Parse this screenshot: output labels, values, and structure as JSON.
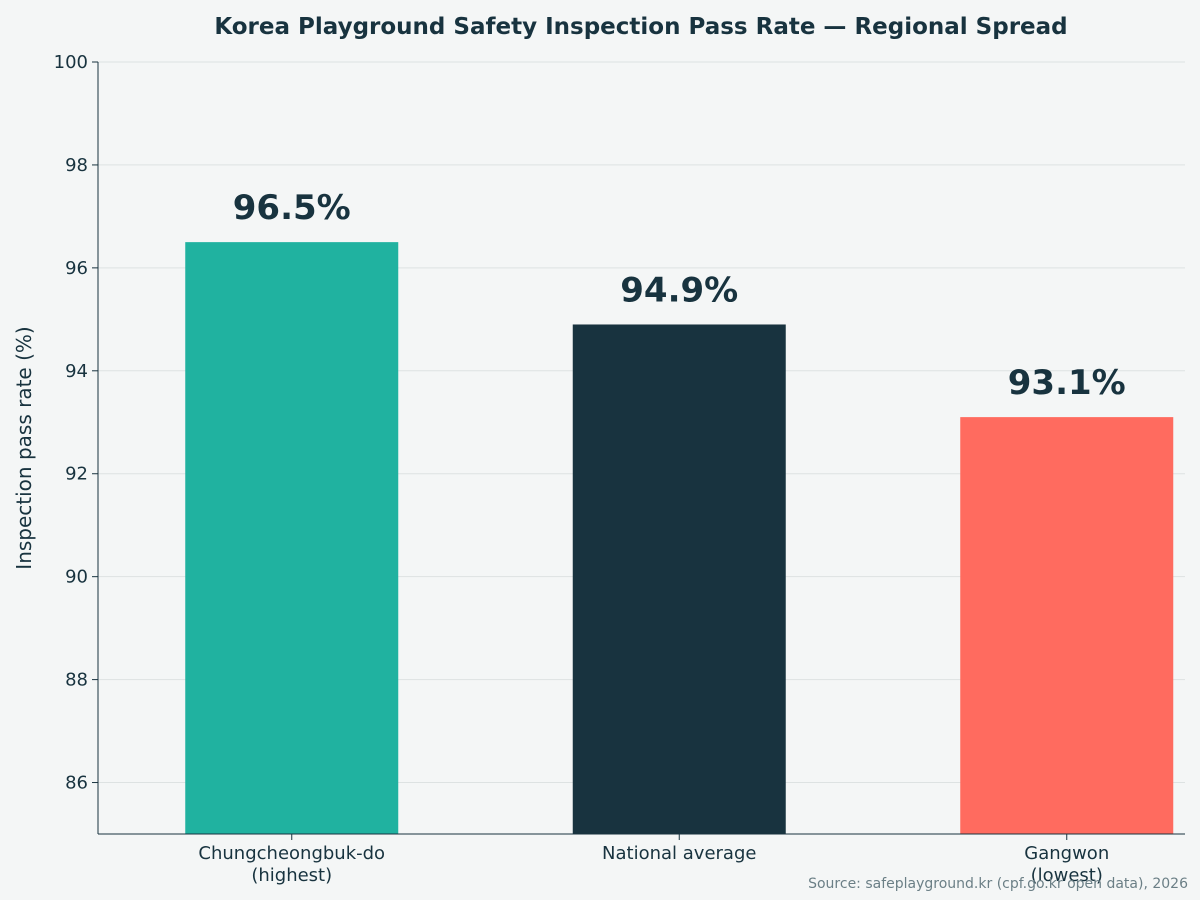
{
  "chart_data": {
    "type": "bar",
    "title": "Korea Playground Safety Inspection Pass Rate — Regional Spread",
    "ylabel": "Inspection pass rate (%)",
    "xlabel": "",
    "categories": [
      [
        "Chungcheongbuk-do",
        "(highest)"
      ],
      [
        "National average"
      ],
      [
        "Gangwon",
        "(lowest)"
      ]
    ],
    "values": [
      96.5,
      94.9,
      93.1
    ],
    "value_labels": [
      "96.5%",
      "94.9%",
      "93.1%"
    ],
    "colors": [
      "#20b2a0",
      "#18333f",
      "#ff6b5f"
    ],
    "ylim": [
      85,
      100
    ],
    "yticks": [
      86,
      88,
      90,
      92,
      94,
      96,
      98,
      100
    ],
    "grid": true,
    "legend": "none"
  },
  "source_note": "Source: safeplayground.kr (cpf.go.kr open data), 2026",
  "colors": {
    "background": "#f4f6f6",
    "text": "#18333f",
    "grid": "#dde2e2",
    "note": "#6b7f86"
  }
}
